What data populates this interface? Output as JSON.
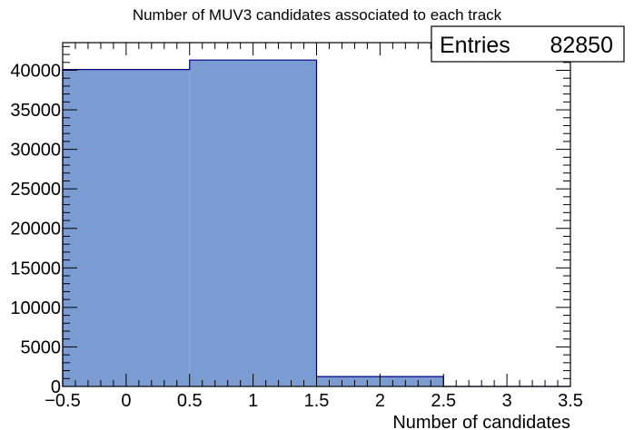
{
  "chart_data": {
    "type": "bar",
    "title": "Number of MUV3 candidates associated to each track",
    "xlabel": "Number of candidates",
    "ylabel": "",
    "xlim": [
      -0.5,
      3.5
    ],
    "ylim": [
      0,
      43500
    ],
    "bin_edges": [
      -0.5,
      0.5,
      1.5,
      2.5,
      3.5
    ],
    "values": [
      40100,
      41300,
      1250,
      0
    ],
    "x_ticks": [
      -0.5,
      0,
      0.5,
      1,
      1.5,
      2,
      2.5,
      3,
      3.5
    ],
    "x_tick_labels": [
      "−0.5",
      "0",
      "0.5",
      "1",
      "1.5",
      "2",
      "2.5",
      "3",
      "3.5"
    ],
    "y_ticks": [
      0,
      5000,
      10000,
      15000,
      20000,
      25000,
      30000,
      35000,
      40000
    ],
    "y_tick_labels": [
      "0",
      "5000",
      "10000",
      "15000",
      "20000",
      "25000",
      "30000",
      "35000",
      "40000"
    ],
    "grid": false,
    "legend": "none",
    "stats_box": {
      "label": "Entries",
      "value": "82850",
      "position": "top-right"
    },
    "colors": {
      "fill": "#7b9bd3",
      "edge": "#000080",
      "axis": "#000000"
    }
  }
}
